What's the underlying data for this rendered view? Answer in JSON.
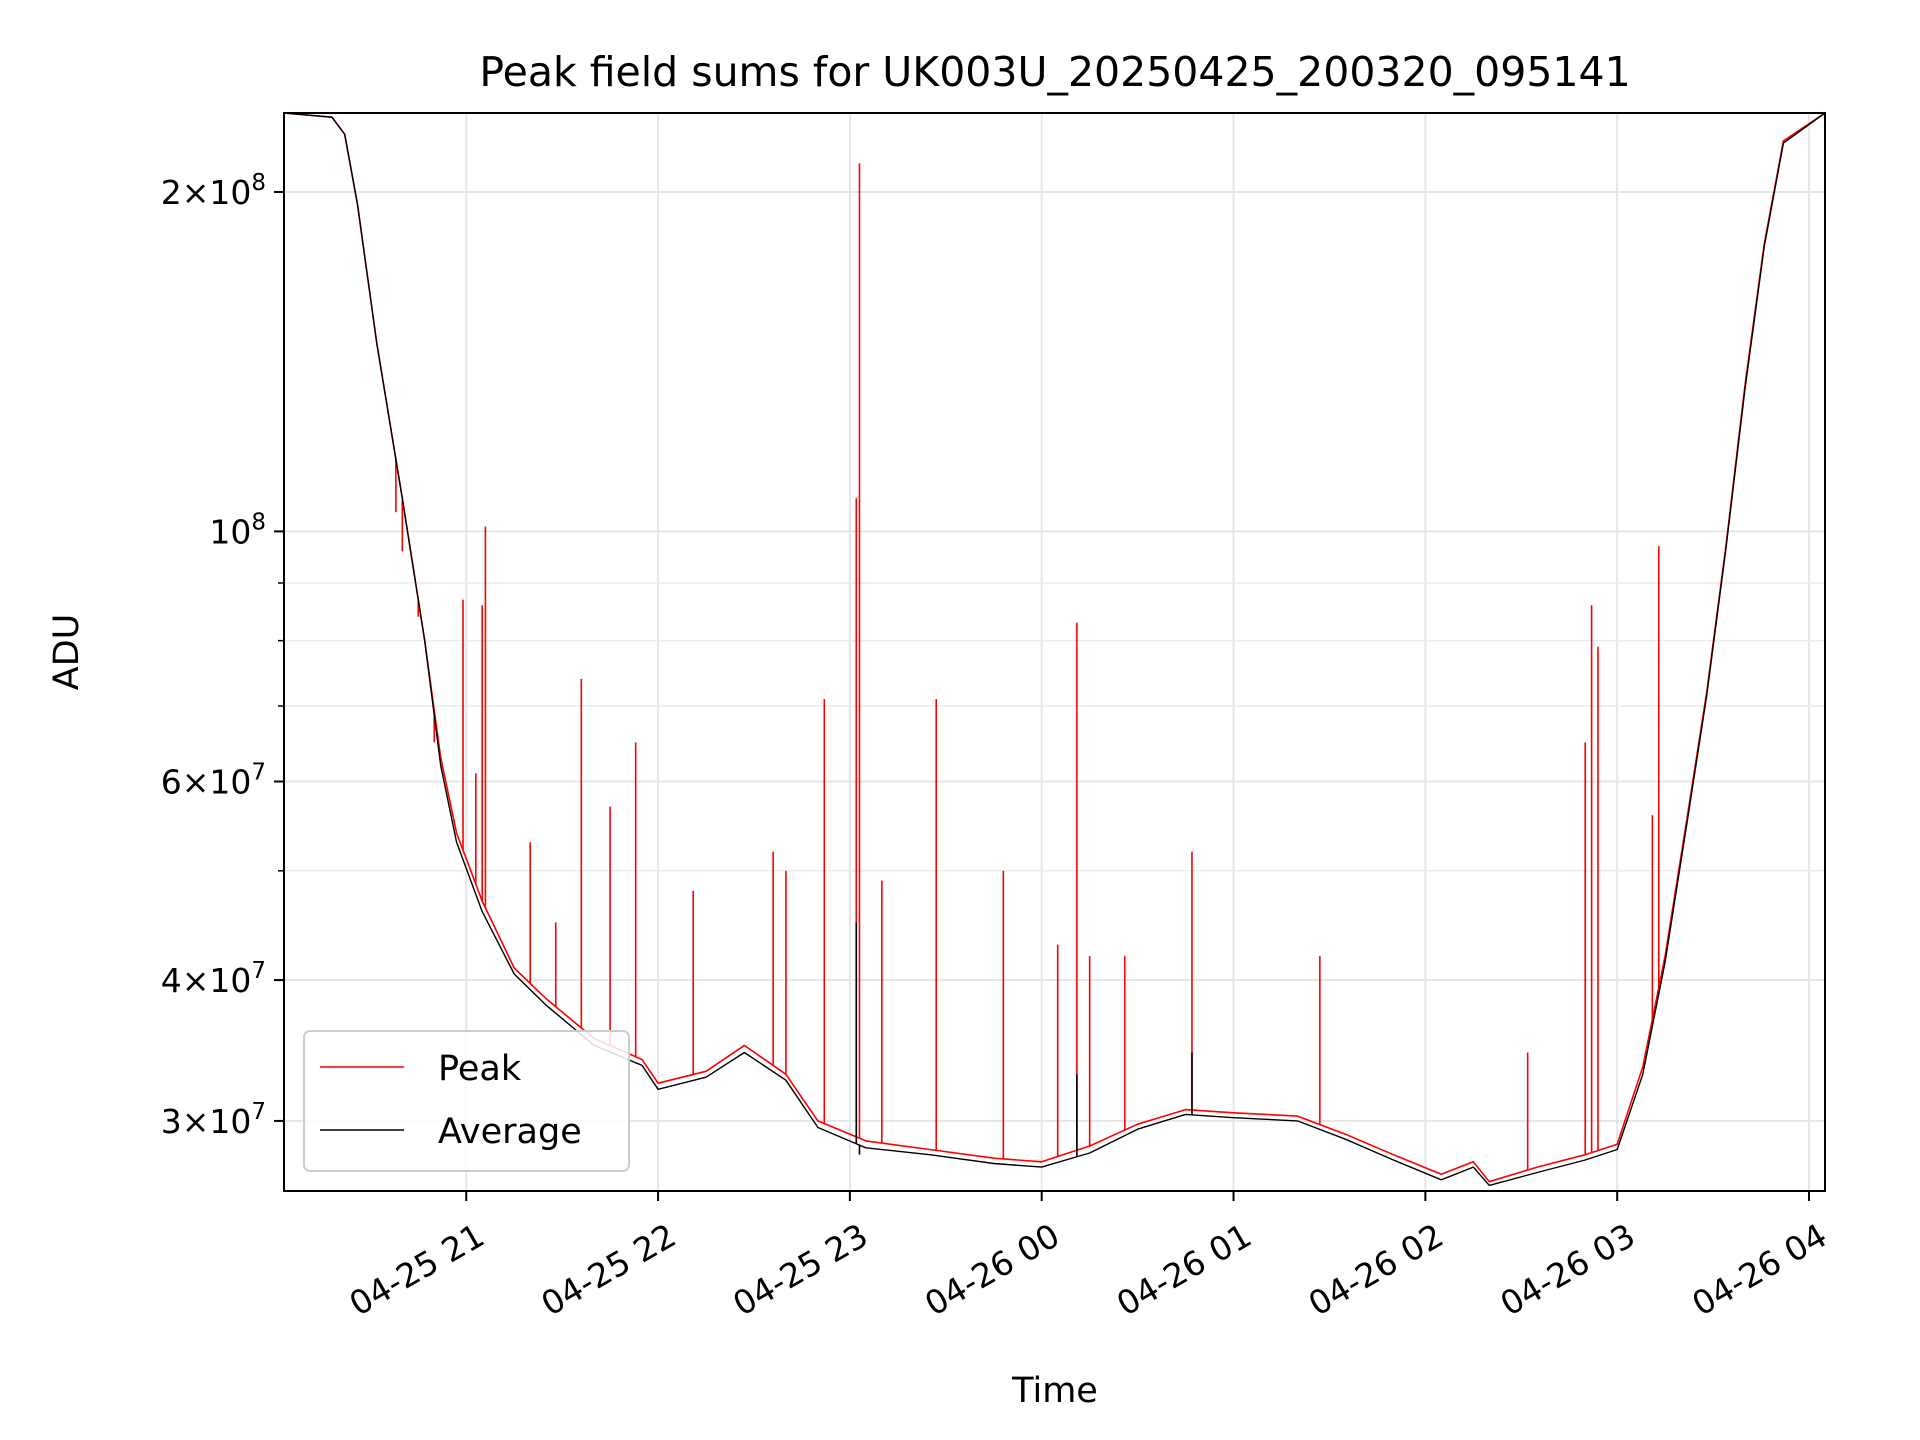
{
  "chart_data": {
    "type": "line",
    "title": "Peak field sums for UK003U_20250425_200320_095141",
    "xlabel": "Time",
    "ylabel": "ADU",
    "yscale": "log",
    "ylim": [
      26000000,
      235000000
    ],
    "xlim": [
      "2025-04-25 20:03",
      "2025-04-26 04:05"
    ],
    "x_ticks": [
      "2025-04-25 21:00",
      "2025-04-25 22:00",
      "2025-04-25 23:00",
      "2025-04-26 00:00",
      "2025-04-26 01:00",
      "2025-04-26 02:00",
      "2025-04-26 03:00",
      "2025-04-26 04:00"
    ],
    "x_tick_labels": [
      "04-25 21",
      "04-25 22",
      "04-25 23",
      "04-26 00",
      "04-26 01",
      "04-26 02",
      "04-26 03",
      "04-26 04"
    ],
    "y_ticks": [
      {
        "value": 30000000,
        "coef": "3",
        "exp": "7"
      },
      {
        "value": 40000000,
        "coef": "4",
        "exp": "7"
      },
      {
        "value": 60000000,
        "coef": "6",
        "exp": "7"
      },
      {
        "value": 100000000,
        "coef": "",
        "exp": "8"
      },
      {
        "value": 200000000,
        "coef": "2",
        "exp": "8"
      }
    ],
    "y_minor_ticks": [
      50000000,
      70000000,
      80000000,
      90000000
    ],
    "grid": true,
    "legend_position": "lower-left",
    "series": [
      {
        "name": "Peak",
        "color": "#ff0000",
        "points": [
          [
            "2025-04-25 20:03",
            235000000
          ],
          [
            "2025-04-25 20:18",
            233000000
          ],
          [
            "2025-04-25 20:22",
            225000000
          ],
          [
            "2025-04-25 20:26",
            195000000
          ],
          [
            "2025-04-25 20:32",
            147000000
          ],
          [
            "2025-04-25 20:40",
            107000000
          ],
          [
            "2025-04-25 20:47",
            80000000
          ],
          [
            "2025-04-25 20:52",
            63000000
          ],
          [
            "2025-04-25 20:57",
            54000000
          ],
          [
            "2025-04-25 21:05",
            47000000
          ],
          [
            "2025-04-25 21:15",
            41000000
          ],
          [
            "2025-04-25 21:25",
            38500000
          ],
          [
            "2025-04-25 21:40",
            35500000
          ],
          [
            "2025-04-25 21:55",
            34000000
          ],
          [
            "2025-04-25 22:00",
            32400000
          ],
          [
            "2025-04-25 22:15",
            33200000
          ],
          [
            "2025-04-25 22:27",
            35000000
          ],
          [
            "2025-04-25 22:40",
            33000000
          ],
          [
            "2025-04-25 22:50",
            30000000
          ],
          [
            "2025-04-25 23:05",
            28800000
          ],
          [
            "2025-04-25 23:25",
            28300000
          ],
          [
            "2025-04-25 23:45",
            27800000
          ],
          [
            "2025-04-26 00:00",
            27600000
          ],
          [
            "2025-04-26 00:15",
            28500000
          ],
          [
            "2025-04-26 00:30",
            29800000
          ],
          [
            "2025-04-26 00:45",
            30700000
          ],
          [
            "2025-04-26 01:00",
            30500000
          ],
          [
            "2025-04-26 01:20",
            30300000
          ],
          [
            "2025-04-26 01:35",
            29200000
          ],
          [
            "2025-04-26 01:50",
            28000000
          ],
          [
            "2025-04-26 02:05",
            26900000
          ],
          [
            "2025-04-26 02:15",
            27600000
          ],
          [
            "2025-04-26 02:20",
            26500000
          ],
          [
            "2025-04-26 02:35",
            27300000
          ],
          [
            "2025-04-26 02:50",
            28000000
          ],
          [
            "2025-04-26 03:00",
            28600000
          ],
          [
            "2025-04-26 03:08",
            33500000
          ],
          [
            "2025-04-26 03:15",
            42000000
          ],
          [
            "2025-04-26 03:22",
            56000000
          ],
          [
            "2025-04-26 03:28",
            72000000
          ],
          [
            "2025-04-26 03:34",
            97000000
          ],
          [
            "2025-04-26 03:40",
            135000000
          ],
          [
            "2025-04-26 03:46",
            180000000
          ],
          [
            "2025-04-26 03:52",
            222000000
          ],
          [
            "2025-04-26 04:05",
            235000000
          ]
        ],
        "spikes": [
          [
            "2025-04-25 20:38",
            104000000
          ],
          [
            "2025-04-25 20:40",
            96000000
          ],
          [
            "2025-04-25 20:45",
            84000000
          ],
          [
            "2025-04-25 20:50",
            65000000
          ],
          [
            "2025-04-25 20:59",
            87000000
          ],
          [
            "2025-04-25 21:03",
            61000000
          ],
          [
            "2025-04-25 21:05",
            86000000
          ],
          [
            "2025-04-25 21:06",
            101000000
          ],
          [
            "2025-04-25 21:20",
            53000000
          ],
          [
            "2025-04-25 21:28",
            45000000
          ],
          [
            "2025-04-25 21:36",
            74000000
          ],
          [
            "2025-04-25 21:45",
            57000000
          ],
          [
            "2025-04-25 21:53",
            65000000
          ],
          [
            "2025-04-25 22:11",
            48000000
          ],
          [
            "2025-04-25 22:36",
            52000000
          ],
          [
            "2025-04-25 22:40",
            50000000
          ],
          [
            "2025-04-25 22:52",
            71000000
          ],
          [
            "2025-04-25 23:02",
            107000000
          ],
          [
            "2025-04-25 23:03",
            212000000
          ],
          [
            "2025-04-25 23:10",
            49000000
          ],
          [
            "2025-04-25 23:27",
            71000000
          ],
          [
            "2025-04-25 23:48",
            50000000
          ],
          [
            "2025-04-26 00:05",
            43000000
          ],
          [
            "2025-04-26 00:11",
            83000000
          ],
          [
            "2025-04-26 00:15",
            42000000
          ],
          [
            "2025-04-26 00:26",
            42000000
          ],
          [
            "2025-04-26 00:47",
            52000000
          ],
          [
            "2025-04-26 01:27",
            42000000
          ],
          [
            "2025-04-26 02:32",
            34500000
          ],
          [
            "2025-04-26 02:50",
            65000000
          ],
          [
            "2025-04-26 02:52",
            86000000
          ],
          [
            "2025-04-26 02:54",
            79000000
          ],
          [
            "2025-04-26 03:11",
            56000000
          ],
          [
            "2025-04-26 03:13",
            97000000
          ]
        ]
      },
      {
        "name": "Average",
        "color": "#000000",
        "points": [
          [
            "2025-04-25 20:03",
            235000000
          ],
          [
            "2025-04-25 20:18",
            233000000
          ],
          [
            "2025-04-25 20:22",
            225000000
          ],
          [
            "2025-04-25 20:26",
            195000000
          ],
          [
            "2025-04-25 20:32",
            147000000
          ],
          [
            "2025-04-25 20:40",
            107000000
          ],
          [
            "2025-04-25 20:47",
            80000000
          ],
          [
            "2025-04-25 20:52",
            62000000
          ],
          [
            "2025-04-25 20:57",
            53000000
          ],
          [
            "2025-04-25 21:05",
            46000000
          ],
          [
            "2025-04-25 21:15",
            40500000
          ],
          [
            "2025-04-25 21:25",
            38000000
          ],
          [
            "2025-04-25 21:40",
            35000000
          ],
          [
            "2025-04-25 21:55",
            33600000
          ],
          [
            "2025-04-25 22:00",
            32000000
          ],
          [
            "2025-04-25 22:15",
            32800000
          ],
          [
            "2025-04-25 22:27",
            34500000
          ],
          [
            "2025-04-25 22:40",
            32600000
          ],
          [
            "2025-04-25 22:50",
            29600000
          ],
          [
            "2025-04-25 23:05",
            28400000
          ],
          [
            "2025-04-25 23:25",
            28000000
          ],
          [
            "2025-04-25 23:45",
            27500000
          ],
          [
            "2025-04-26 00:00",
            27300000
          ],
          [
            "2025-04-26 00:15",
            28100000
          ],
          [
            "2025-04-26 00:30",
            29500000
          ],
          [
            "2025-04-26 00:45",
            30400000
          ],
          [
            "2025-04-26 01:00",
            30200000
          ],
          [
            "2025-04-26 01:20",
            30000000
          ],
          [
            "2025-04-26 01:35",
            28900000
          ],
          [
            "2025-04-26 01:50",
            27700000
          ],
          [
            "2025-04-26 02:05",
            26600000
          ],
          [
            "2025-04-26 02:15",
            27300000
          ],
          [
            "2025-04-26 02:20",
            26300000
          ],
          [
            "2025-04-26 02:35",
            27000000
          ],
          [
            "2025-04-26 02:50",
            27700000
          ],
          [
            "2025-04-26 03:00",
            28300000
          ],
          [
            "2025-04-26 03:08",
            33000000
          ],
          [
            "2025-04-26 03:15",
            41500000
          ],
          [
            "2025-04-26 03:22",
            55500000
          ],
          [
            "2025-04-26 03:28",
            71500000
          ],
          [
            "2025-04-26 03:34",
            96500000
          ],
          [
            "2025-04-26 03:40",
            134000000
          ],
          [
            "2025-04-26 03:46",
            179000000
          ],
          [
            "2025-04-26 03:52",
            221000000
          ],
          [
            "2025-04-26 04:05",
            235000000
          ]
        ],
        "spikes": [
          [
            "2025-04-25 23:02",
            45000000
          ],
          [
            "2025-04-25 23:03",
            28000000
          ],
          [
            "2025-04-26 00:11",
            33000000
          ],
          [
            "2025-04-26 00:47",
            34500000
          ]
        ]
      }
    ]
  }
}
